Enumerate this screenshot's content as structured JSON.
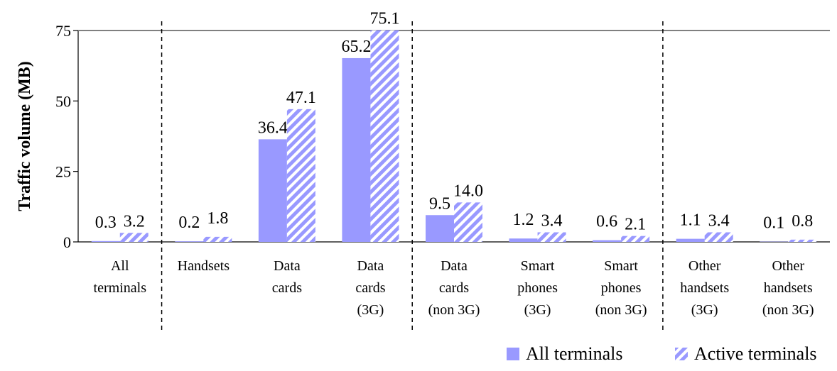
{
  "chart_data": {
    "type": "bar",
    "title": "",
    "ylabel": "Traffic volume (MB)",
    "xlabel": "",
    "ylim": [
      0,
      75
    ],
    "yticks": [
      "0",
      "25",
      "50",
      "75"
    ],
    "categories": [
      [
        "All",
        "terminals"
      ],
      [
        "Handsets"
      ],
      [
        "Data",
        "cards"
      ],
      [
        "Data",
        "cards",
        "(3G)"
      ],
      [
        "Data",
        "cards",
        "(non 3G)"
      ],
      [
        "Smart",
        "phones",
        "(3G)"
      ],
      [
        "Smart",
        "phones",
        "(non 3G)"
      ],
      [
        "Other",
        "handsets",
        "(3G)"
      ],
      [
        "Other",
        "handsets",
        "(non 3G)"
      ]
    ],
    "series": [
      {
        "name": "All terminals",
        "pattern": "solid",
        "color": "#9999ff",
        "values": [
          0.3,
          0.2,
          36.4,
          65.2,
          9.5,
          1.2,
          0.6,
          1.1,
          0.1
        ],
        "labels": [
          "0.3",
          "0.2",
          "36.4",
          "65.2",
          "9.5",
          "1.2",
          "0.6",
          "1.1",
          "0.1"
        ]
      },
      {
        "name": "Active terminals",
        "pattern": "hatched",
        "color": "#9999ff",
        "values": [
          3.2,
          1.8,
          47.1,
          75.1,
          14.0,
          3.4,
          2.1,
          3.4,
          0.8
        ],
        "labels": [
          "3.2",
          "1.8",
          "47.1",
          "75.1",
          "14.0",
          "3.4",
          "2.1",
          "3.4",
          "0.8"
        ]
      }
    ],
    "group_separators_after": [
      0,
      3,
      6
    ],
    "legend_position": "bottom-right",
    "grid": false
  }
}
